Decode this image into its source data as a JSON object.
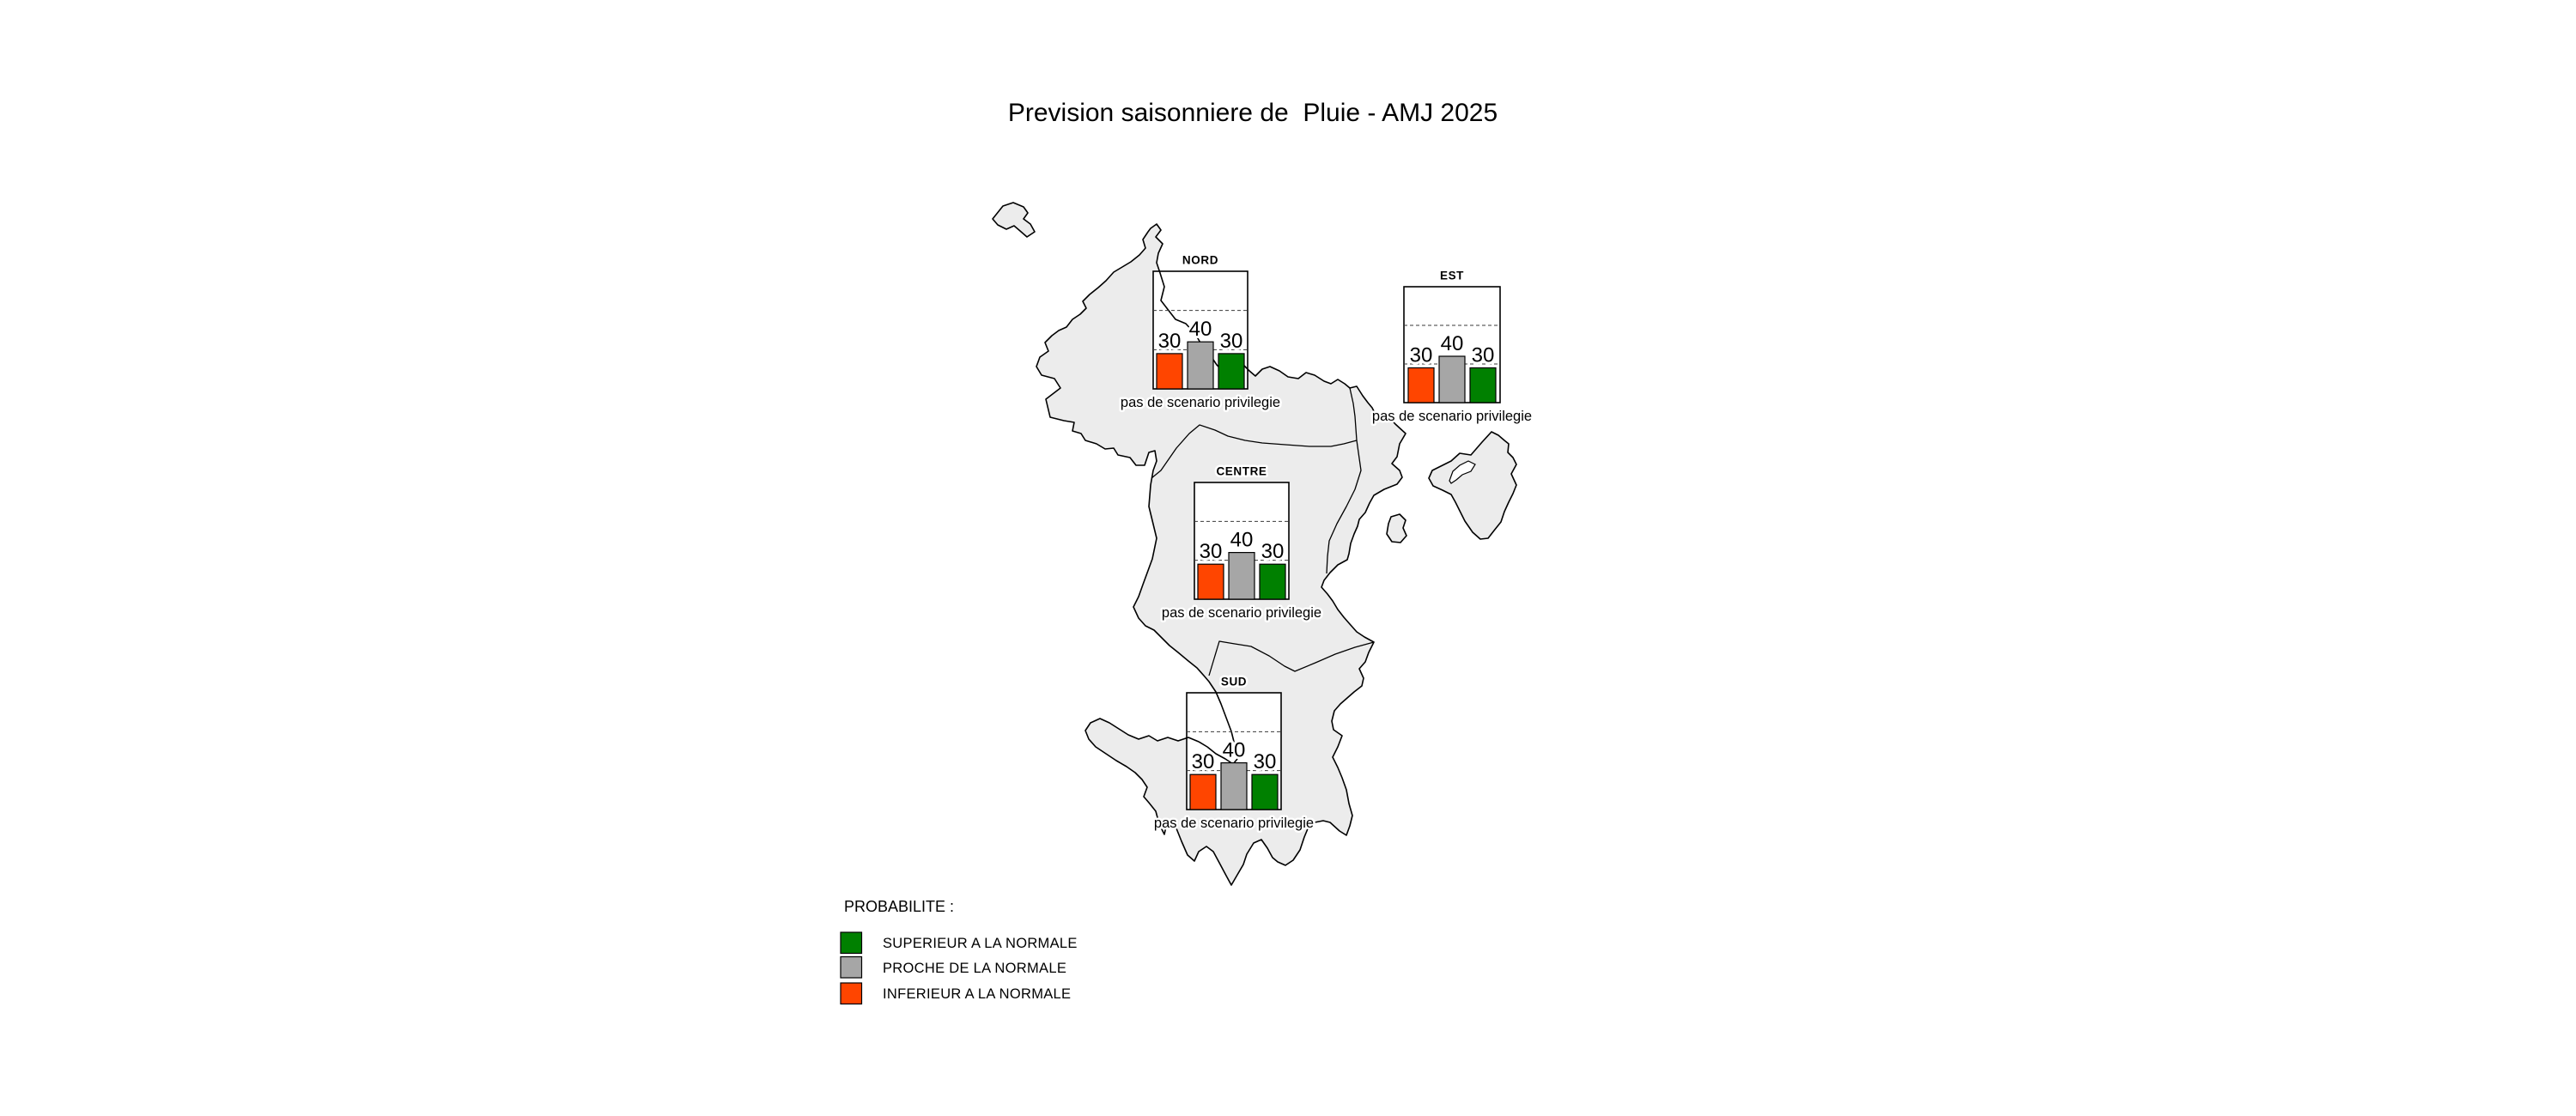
{
  "title": "Prevision saisonniere de  Pluie - AMJ 2025",
  "colors": {
    "above_normal": "#008000",
    "near_normal": "#A6A6A6",
    "below_normal": "#FF4500",
    "map_fill": "#ECECEC",
    "outline": "#000000"
  },
  "legend": {
    "title": "PROBABILITE :",
    "items": [
      {
        "label": "SUPERIEUR A LA NORMALE",
        "color_key": "above_normal"
      },
      {
        "label": "PROCHE DE LA NORMALE",
        "color_key": "near_normal"
      },
      {
        "label": "INFERIEUR A LA NORMALE",
        "color_key": "below_normal"
      }
    ]
  },
  "charts": [
    {
      "region": "NORD",
      "values": [
        30,
        40,
        30
      ],
      "note": "pas de scenario privilegie"
    },
    {
      "region": "EST",
      "values": [
        30,
        40,
        30
      ],
      "note": "pas de scenario privilegie"
    },
    {
      "region": "CENTRE",
      "values": [
        30,
        40,
        30
      ],
      "note": "pas de scenario privilegie"
    },
    {
      "region": "SUD",
      "values": [
        30,
        40,
        30
      ],
      "note": "pas de scenario privilegie"
    }
  ],
  "chart_data": [
    {
      "type": "bar",
      "region": "NORD",
      "categories": [
        "INFERIEUR A LA NORMALE",
        "PROCHE DE LA NORMALE",
        "SUPERIEUR A LA NORMALE"
      ],
      "values": [
        30,
        40,
        30
      ],
      "ylim": [
        0,
        100
      ],
      "reference_lines": [
        33.3,
        66.7
      ],
      "annotation": "pas de scenario privilegie"
    },
    {
      "type": "bar",
      "region": "EST",
      "categories": [
        "INFERIEUR A LA NORMALE",
        "PROCHE DE LA NORMALE",
        "SUPERIEUR A LA NORMALE"
      ],
      "values": [
        30,
        40,
        30
      ],
      "ylim": [
        0,
        100
      ],
      "reference_lines": [
        33.3,
        66.7
      ],
      "annotation": "pas de scenario privilegie"
    },
    {
      "type": "bar",
      "region": "CENTRE",
      "categories": [
        "INFERIEUR A LA NORMALE",
        "PROCHE DE LA NORMALE",
        "SUPERIEUR A LA NORMALE"
      ],
      "values": [
        30,
        40,
        30
      ],
      "ylim": [
        0,
        100
      ],
      "reference_lines": [
        33.3,
        66.7
      ],
      "annotation": "pas de scenario privilegie"
    },
    {
      "type": "bar",
      "region": "SUD",
      "categories": [
        "INFERIEUR A LA NORMALE",
        "PROCHE DE LA NORMALE",
        "SUPERIEUR A LA NORMALE"
      ],
      "values": [
        30,
        40,
        30
      ],
      "ylim": [
        0,
        100
      ],
      "reference_lines": [
        33.3,
        66.7
      ],
      "annotation": "pas de scenario privilegie"
    }
  ]
}
